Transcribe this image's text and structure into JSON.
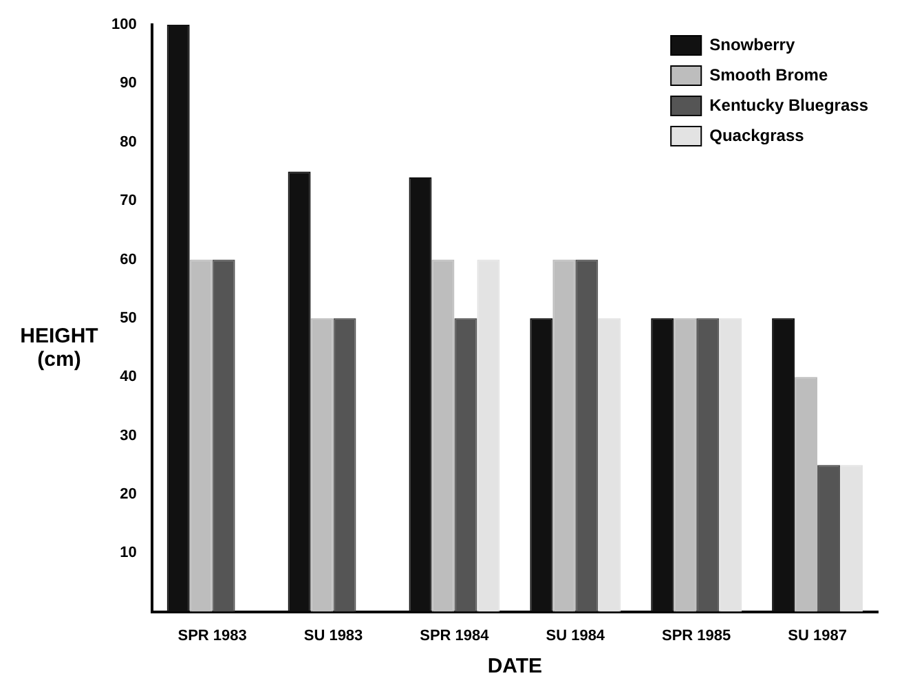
{
  "chart_data": {
    "type": "bar",
    "xlabel": "DATE",
    "ylabel": "HEIGHT (cm)",
    "categories": [
      "SPR 1983",
      "SU 1983",
      "SPR 1984",
      "SU 1984",
      "SPR 1985",
      "SU 1987"
    ],
    "series": [
      {
        "name": "Snowberry",
        "color": "#111111",
        "values": [
          100,
          75,
          74,
          50,
          50,
          50
        ]
      },
      {
        "name": "Smooth Brome",
        "color": "#bdbdbd",
        "values": [
          60,
          50,
          60,
          60,
          50,
          40
        ]
      },
      {
        "name": "Kentucky Bluegrass",
        "color": "#555555",
        "values": [
          60,
          50,
          50,
          60,
          50,
          25
        ]
      },
      {
        "name": "Quackgrass",
        "color": "#e3e3e3",
        "values": [
          null,
          null,
          60,
          50,
          50,
          25
        ]
      }
    ],
    "ylim": [
      0,
      100
    ],
    "yticks": [
      10,
      20,
      30,
      40,
      50,
      60,
      70,
      80,
      90,
      100
    ],
    "grid": false,
    "legend": "top right"
  }
}
